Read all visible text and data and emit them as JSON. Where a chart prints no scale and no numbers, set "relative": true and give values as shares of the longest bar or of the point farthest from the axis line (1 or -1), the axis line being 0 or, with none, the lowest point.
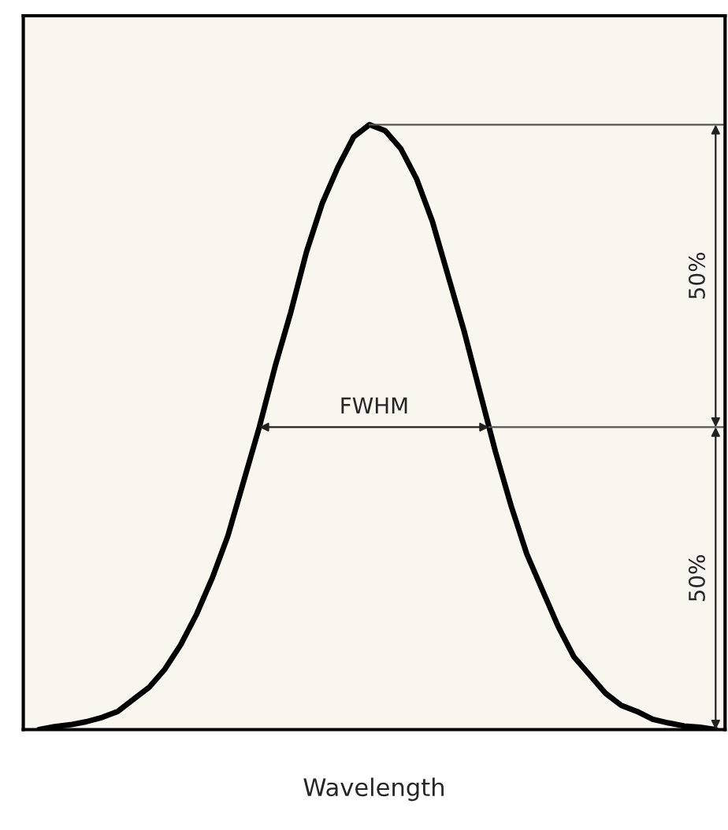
{
  "chart_data": {
    "type": "line",
    "relative": true,
    "xlabel": "Wavelength",
    "tick_labels": false,
    "categories": [
      null,
      null,
      null,
      null,
      null,
      null,
      null,
      null,
      null,
      null,
      null,
      null,
      null,
      null,
      null,
      null,
      null,
      null,
      null,
      null,
      null,
      null,
      null,
      null,
      null,
      null,
      null,
      null,
      null,
      null,
      null,
      null,
      null,
      null,
      null,
      null,
      null,
      null,
      null,
      null,
      null,
      null,
      null,
      null
    ],
    "series": [
      {
        "color": "#000000",
        "values": [
          0.0,
          0.005,
          0.008,
          0.013,
          0.02,
          0.03,
          0.05,
          0.07,
          0.1,
          0.14,
          0.19,
          0.25,
          0.32,
          0.41,
          0.5,
          0.6,
          0.69,
          0.79,
          0.87,
          0.93,
          0.98,
          1.0,
          0.99,
          0.96,
          0.91,
          0.84,
          0.75,
          0.66,
          0.56,
          0.46,
          0.37,
          0.29,
          0.23,
          0.17,
          0.12,
          0.09,
          0.06,
          0.04,
          0.03,
          0.017,
          0.011,
          0.006,
          0.004,
          0.0
        ]
      }
    ],
    "ref_lines": [
      {
        "axis": "y",
        "value": 1.0,
        "color": "#555555"
      },
      {
        "axis": "y",
        "value": 0.5,
        "color": "#555555"
      }
    ],
    "annotations": [
      "FWHM",
      "50%",
      "50%"
    ]
  }
}
